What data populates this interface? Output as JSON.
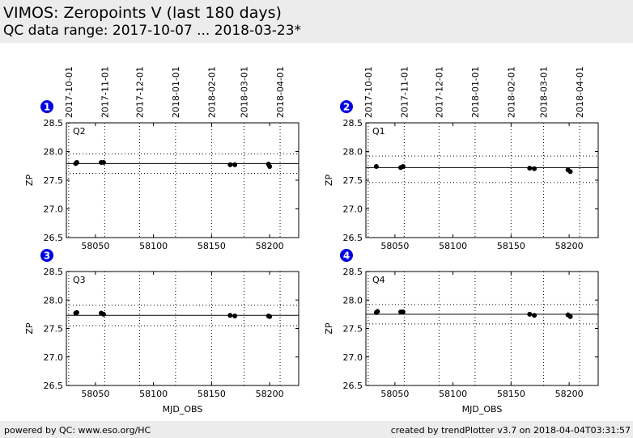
{
  "header": {
    "title": "VIMOS: Zeropoints V (last 180 days)",
    "subtitle": "QC data range: 2017-10-07 ... 2018-03-23*"
  },
  "footer": {
    "left": "powered by QC: www.eso.org/HC",
    "right": "created by trendPlotter v3.7 on 2018-04-04T03:31:57"
  },
  "colors": {
    "marker": "#000000",
    "badge": "#0000e0",
    "header_bg": "#ececec"
  },
  "chart_data": [
    {
      "type": "scatter",
      "number": "1",
      "label": "Q2",
      "xlabel": "",
      "ylabel": "ZP",
      "xlim": [
        58025,
        58225
      ],
      "ylim": [
        26.5,
        28.5
      ],
      "yticks": [
        "28.5",
        "28.0",
        "27.5",
        "27.0",
        "26.5"
      ],
      "xticks": [
        "58050",
        "58100",
        "58150",
        "58200"
      ],
      "date_ticks": [
        "2017-10-01",
        "2017-11-01",
        "2017-12-01",
        "2018-01-01",
        "2018-02-01",
        "2018-03-01",
        "2018-04-01"
      ],
      "reference": 27.79,
      "band": [
        27.96,
        27.62
      ],
      "points": [
        [
          58033,
          27.79
        ],
        [
          58034,
          27.81
        ],
        [
          58055,
          27.81
        ],
        [
          58057,
          27.81
        ],
        [
          58166,
          27.77
        ],
        [
          58170,
          27.77
        ],
        [
          58199,
          27.78
        ],
        [
          58200,
          27.74
        ]
      ]
    },
    {
      "type": "scatter",
      "number": "2",
      "label": "Q1",
      "xlabel": "",
      "ylabel": "ZP",
      "xlim": [
        58025,
        58225
      ],
      "ylim": [
        26.5,
        28.5
      ],
      "yticks": [
        "28.5",
        "28.0",
        "27.5",
        "27.0",
        "26.5"
      ],
      "xticks": [
        "58050",
        "58100",
        "58150",
        "58200"
      ],
      "date_ticks": [
        "2017-10-01",
        "2017-11-01",
        "2017-12-01",
        "2018-01-01",
        "2018-02-01",
        "2018-03-01",
        "2018-04-01"
      ],
      "reference": 27.72,
      "band": [
        27.92,
        27.46
      ],
      "points": [
        [
          58034,
          27.74
        ],
        [
          58055,
          27.72
        ],
        [
          58057,
          27.74
        ],
        [
          58166,
          27.71
        ],
        [
          58170,
          27.7
        ],
        [
          58199,
          27.68
        ],
        [
          58201,
          27.65
        ]
      ]
    },
    {
      "type": "scatter",
      "number": "3",
      "label": "Q3",
      "xlabel": "MJD_OBS",
      "ylabel": "ZP",
      "xlim": [
        58025,
        58225
      ],
      "ylim": [
        26.5,
        28.5
      ],
      "yticks": [
        "28.5",
        "28.0",
        "27.5",
        "27.0",
        "26.5"
      ],
      "xticks": [
        "58050",
        "58100",
        "58150",
        "58200"
      ],
      "date_ticks": [],
      "reference": 27.73,
      "band": [
        27.91,
        27.55
      ],
      "points": [
        [
          58033,
          27.77
        ],
        [
          58034,
          27.78
        ],
        [
          58055,
          27.77
        ],
        [
          58057,
          27.75
        ],
        [
          58166,
          27.73
        ],
        [
          58170,
          27.72
        ],
        [
          58199,
          27.72
        ],
        [
          58200,
          27.71
        ]
      ]
    },
    {
      "type": "scatter",
      "number": "4",
      "label": "Q4",
      "xlabel": "MJD_OBS",
      "ylabel": "ZP",
      "xlim": [
        58025,
        58225
      ],
      "ylim": [
        26.5,
        28.5
      ],
      "yticks": [
        "28.5",
        "28.0",
        "27.5",
        "27.0",
        "26.5"
      ],
      "xticks": [
        "58050",
        "58100",
        "58150",
        "58200"
      ],
      "date_ticks": [],
      "reference": 27.75,
      "band": [
        27.92,
        27.58
      ],
      "points": [
        [
          58034,
          27.78
        ],
        [
          58035,
          27.8
        ],
        [
          58055,
          27.79
        ],
        [
          58057,
          27.79
        ],
        [
          58166,
          27.75
        ],
        [
          58170,
          27.73
        ],
        [
          58199,
          27.74
        ],
        [
          58201,
          27.71
        ]
      ]
    }
  ]
}
